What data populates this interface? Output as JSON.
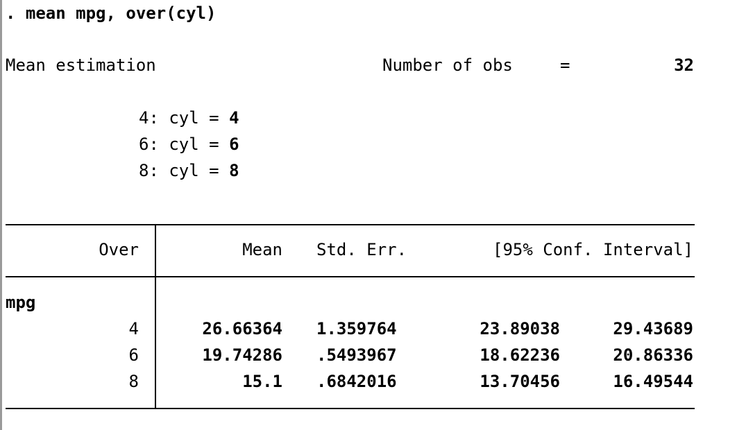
{
  "command": {
    "prompt": ".",
    "text": "mean mpg, over(cyl)"
  },
  "header": {
    "title": "Mean estimation",
    "obs_label": "Number of obs",
    "obs_eq": "=",
    "obs_value": "32"
  },
  "over_legend": [
    {
      "code": "4:",
      "text": "cyl =",
      "value": "4"
    },
    {
      "code": "6:",
      "text": "cyl =",
      "value": "6"
    },
    {
      "code": "8:",
      "text": "cyl =",
      "value": "8"
    }
  ],
  "table": {
    "columns": {
      "over": "Over",
      "mean": "Mean",
      "se": "Std. Err.",
      "ci": "[95% Conf. Interval]"
    },
    "variable": "mpg",
    "rows": [
      {
        "over": "4",
        "mean": "26.66364",
        "se": "1.359764",
        "lo": "23.89038",
        "hi": "29.43689"
      },
      {
        "over": "6",
        "mean": "19.74286",
        "se": ".5493967",
        "lo": "18.62236",
        "hi": "20.86336"
      },
      {
        "over": "8",
        "mean": "15.1",
        "se": ".6842016",
        "lo": "13.70456",
        "hi": "16.49544"
      }
    ]
  }
}
